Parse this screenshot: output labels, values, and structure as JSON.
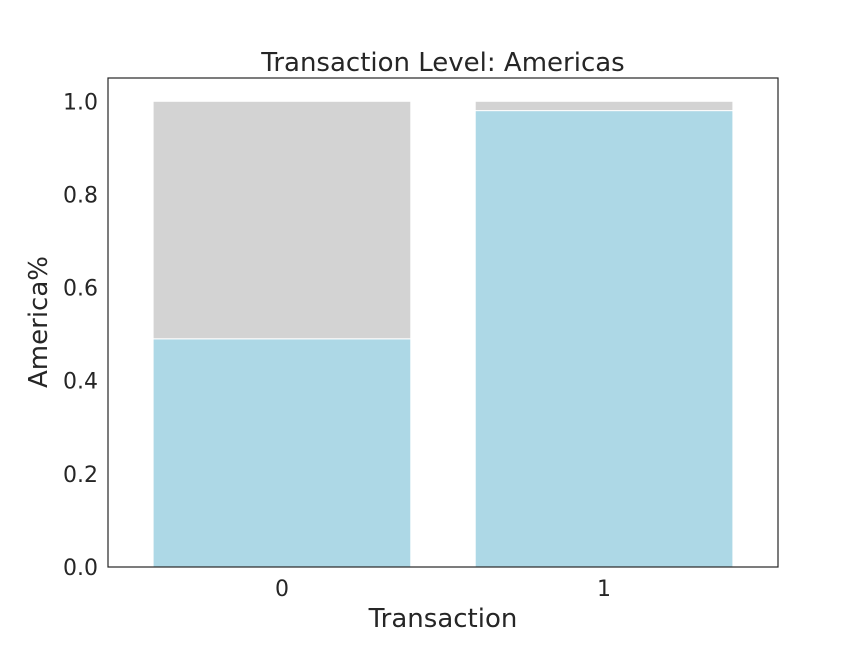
{
  "chart_data": {
    "type": "bar",
    "stacked": true,
    "title": "Transaction Level: Americas",
    "xlabel": "Transaction",
    "ylabel": "America%",
    "categories": [
      "0",
      "1"
    ],
    "series": [
      {
        "values": [
          0.49,
          0.98
        ],
        "color": "#add8e6"
      },
      {
        "values": [
          0.51,
          0.02
        ],
        "color": "#d3d3d3"
      }
    ],
    "ylim": [
      0,
      1.05
    ],
    "yticks": [
      "0.0",
      "0.2",
      "0.4",
      "0.6",
      "0.8",
      "1.0"
    ],
    "grid": false,
    "legend": "none"
  }
}
